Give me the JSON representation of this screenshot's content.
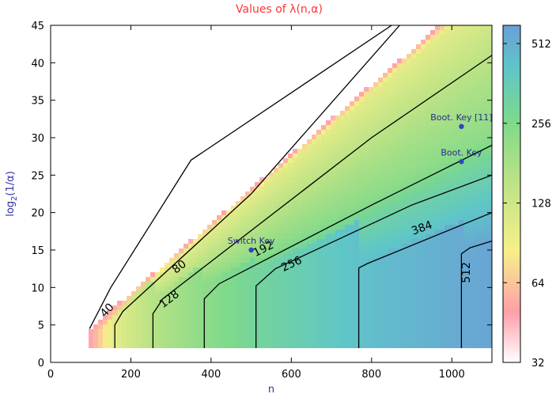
{
  "chart_data": {
    "type": "heatmap",
    "title": "Values of λ(n,α)",
    "xlabel": "n",
    "ylabel": "log2(1/α)",
    "ylabel_main": "log",
    "ylabel_sub": "2",
    "ylabel_tail": "(1/α)",
    "xlim": [
      0,
      1100
    ],
    "ylim": [
      0,
      45
    ],
    "x_ticks": [
      0,
      200,
      400,
      600,
      800,
      1000
    ],
    "y_ticks": [
      0,
      5,
      10,
      15,
      20,
      25,
      30,
      35,
      40,
      45
    ],
    "x_tick_labels": [
      "0",
      "200",
      "400",
      "600",
      "800",
      "1000"
    ],
    "y_tick_labels": [
      "0",
      "5",
      "10",
      "15",
      "20",
      "25",
      "30",
      "35",
      "40",
      "45"
    ],
    "colorbar": {
      "scale": "log",
      "range": [
        32,
        600
      ],
      "ticks": [
        32,
        64,
        128,
        256,
        512
      ],
      "tick_labels": [
        "32",
        "64",
        "128",
        "256",
        "512"
      ]
    },
    "contours": [
      {
        "level": 40,
        "label": "40",
        "points": [
          [
            97,
            4.5
          ],
          [
            150,
            10
          ],
          [
            350,
            27
          ],
          [
            850,
            45
          ]
        ],
        "label_at": [
          140,
          7.0
        ],
        "label_angle": -47
      },
      {
        "level": 80,
        "label": "80",
        "points": [
          [
            160,
            1.9
          ],
          [
            160,
            5
          ],
          [
            180,
            6.8
          ],
          [
            500,
            22.5
          ],
          [
            870,
            45
          ]
        ],
        "label_at": [
          320,
          12.8
        ],
        "label_angle": -38
      },
      {
        "level": 128,
        "label": "128",
        "points": [
          [
            255,
            1.9
          ],
          [
            255,
            6.5
          ],
          [
            280,
            8.5
          ],
          [
            800,
            30
          ],
          [
            1100,
            41
          ]
        ],
        "label_at": [
          295,
          8.5
        ],
        "label_angle": -37
      },
      {
        "level": 192,
        "label": "192",
        "points": [
          [
            383,
            1.9
          ],
          [
            383,
            8.5
          ],
          [
            420,
            10.5
          ],
          [
            800,
            21
          ],
          [
            1100,
            29
          ]
        ],
        "label_at": [
          530,
          15.2
        ],
        "label_angle": -26
      },
      {
        "level": 256,
        "label": "256",
        "points": [
          [
            512,
            1.9
          ],
          [
            512,
            10.2
          ],
          [
            560,
            12.5
          ],
          [
            900,
            21
          ],
          [
            1100,
            25
          ]
        ],
        "label_at": [
          600,
          13.2
        ],
        "label_angle": -25
      },
      {
        "level": 384,
        "label": "384",
        "points": [
          [
            768,
            1.9
          ],
          [
            768,
            12.6
          ],
          [
            790,
            13.2
          ],
          [
            1100,
            20
          ]
        ],
        "label_at": [
          925,
          18
        ],
        "label_angle": -20
      },
      {
        "level": 512,
        "label": "512",
        "points": [
          [
            1024,
            1.9
          ],
          [
            1024,
            14.5
          ],
          [
            1045,
            15.3
          ],
          [
            1100,
            16.2
          ]
        ],
        "label_at": [
          1035,
          12
        ],
        "label_angle": -90
      }
    ],
    "annotations": [
      {
        "label": "Switch Key",
        "n": 500,
        "log2_inv_alpha": 15
      },
      {
        "label": "Boot. Key",
        "n": 1024,
        "log2_inv_alpha": 26.8
      },
      {
        "label": "Boot. Key [11]",
        "n": 1024,
        "log2_inv_alpha": 31.5
      }
    ],
    "region": {
      "n_min": 97,
      "n_max": 1100,
      "log2_inv_alpha_min": 1.9
    }
  },
  "colors": {
    "title": "#ff3333",
    "axis_title": "#3333aa",
    "annotation": "#2a2a8f",
    "marker": "#3344bb"
  }
}
